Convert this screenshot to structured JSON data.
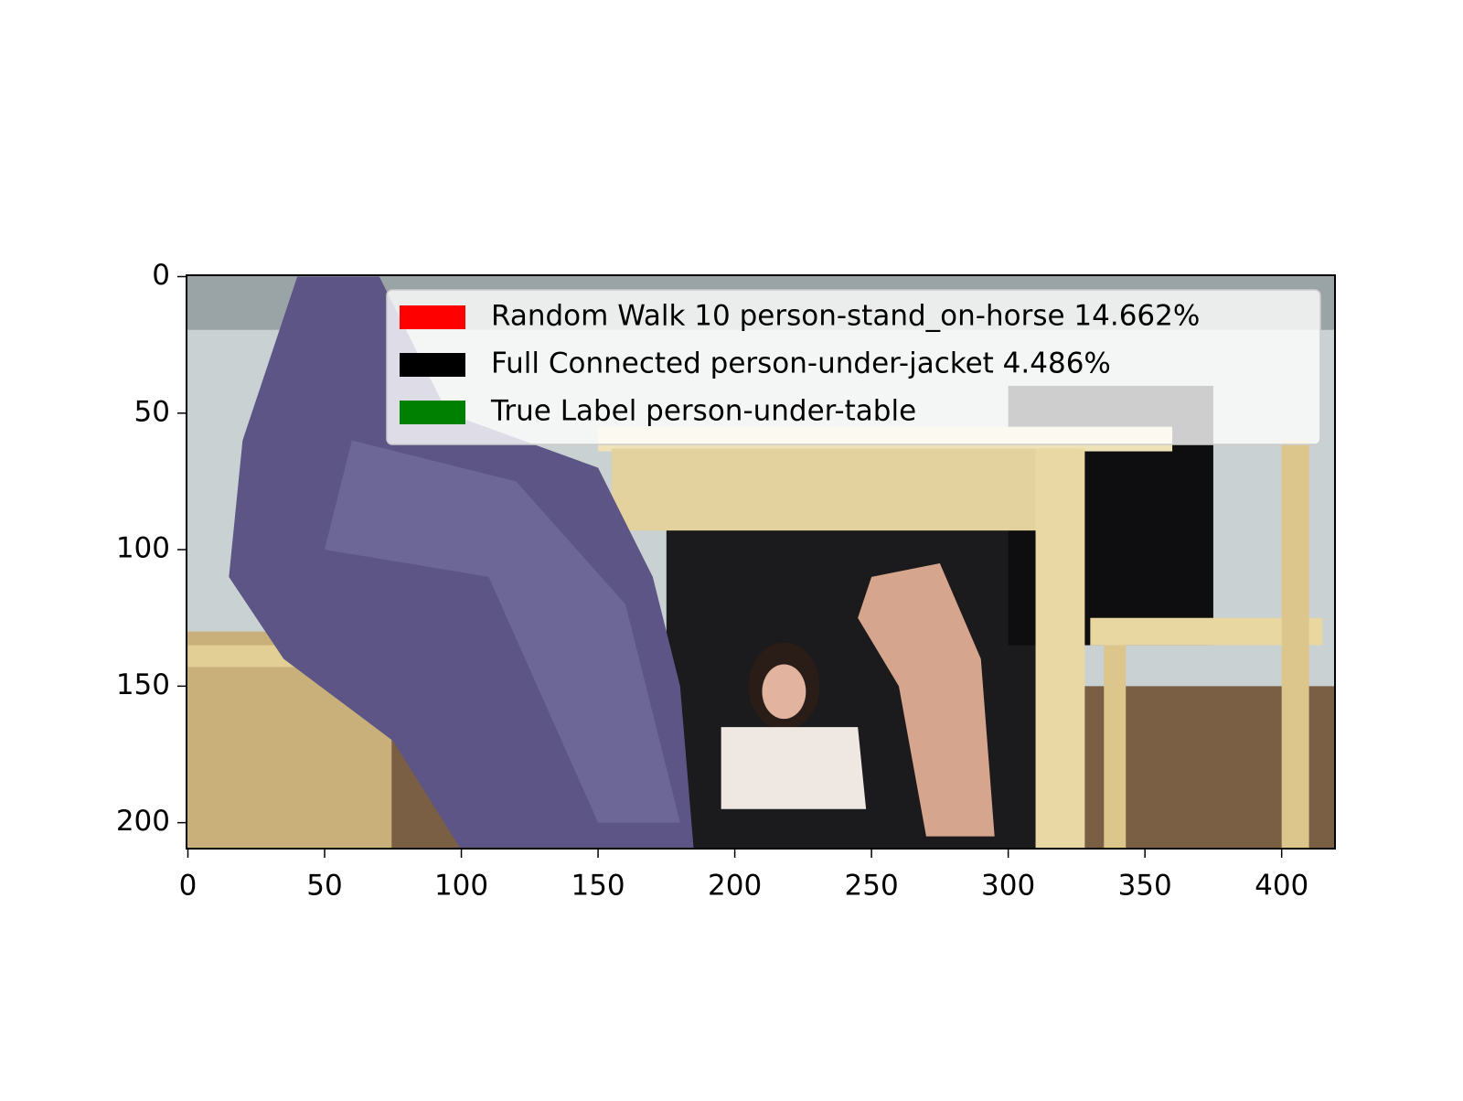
{
  "chart_data": {
    "type": "image",
    "xlim": [
      -0.5,
      419.5
    ],
    "ylim": [
      209.5,
      -0.5
    ],
    "xticks": [
      0,
      50,
      100,
      150,
      200,
      250,
      300,
      350,
      400
    ],
    "yticks": [
      0,
      50,
      100,
      150,
      200
    ],
    "legend_position": "upper right",
    "legend": [
      {
        "label": "Random Walk 10  person-stand_on-horse 14.662%",
        "color": "#ff0000"
      },
      {
        "label": "Full Connected   person-under-jacket 4.486%",
        "color": "#000000"
      },
      {
        "label": "True Label person-under-table",
        "color": "#008000"
      }
    ]
  }
}
